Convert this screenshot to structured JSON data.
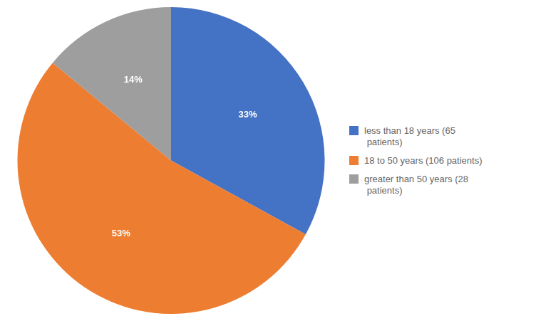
{
  "chart_data": {
    "type": "pie",
    "categories": [
      "less than 18 years (65\n patients)",
      "18 to 50 years (106 patients)",
      "greater than 50 years (28\n patients)"
    ],
    "values": [
      33,
      53,
      14
    ],
    "value_labels": [
      "33%",
      "53%",
      "14%"
    ],
    "colors": [
      "#4472C4",
      "#ED7D31",
      "#9E9E9E"
    ],
    "data_labels": true,
    "legend": "right"
  }
}
